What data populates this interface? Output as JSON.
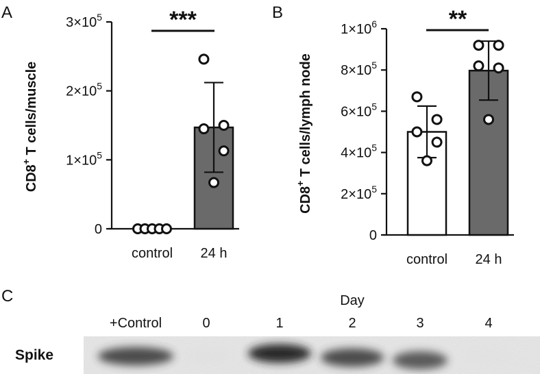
{
  "chart_data": [
    {
      "type": "bar",
      "panel": "A",
      "ylabel_main": "CD8",
      "ylabel_sup": "+",
      "ylabel_rest": " T cells/muscle",
      "categories": [
        "control",
        "24 h"
      ],
      "ylim": [
        0,
        300000
      ],
      "yticks": [
        {
          "value": 0,
          "base": "0",
          "exp": ""
        },
        {
          "value": 100000,
          "base": "1×10",
          "exp": "5"
        },
        {
          "value": 200000,
          "base": "2×10",
          "exp": "5"
        },
        {
          "value": 300000,
          "base": "3×10",
          "exp": "5"
        }
      ],
      "bars": [
        {
          "category": "control",
          "mean": 0,
          "sd": 0,
          "fill": "#ffffff",
          "points": [
            0,
            0,
            0,
            0,
            0
          ]
        },
        {
          "category": "24 h",
          "mean": 147000,
          "sd": 65000,
          "fill": "#6a6a6a",
          "points": [
            246000,
            150000,
            145000,
            113000,
            67000
          ]
        }
      ],
      "significance": "***"
    },
    {
      "type": "bar",
      "panel": "B",
      "ylabel_main": "CD8",
      "ylabel_sup": "+",
      "ylabel_rest": " T cells/lymph node",
      "categories": [
        "control",
        "24 h"
      ],
      "ylim": [
        0,
        1000000
      ],
      "yticks": [
        {
          "value": 0,
          "base": "0",
          "exp": ""
        },
        {
          "value": 200000,
          "base": "2×10",
          "exp": "5"
        },
        {
          "value": 400000,
          "base": "4×10",
          "exp": "5"
        },
        {
          "value": 600000,
          "base": "6×10",
          "exp": "5"
        },
        {
          "value": 800000,
          "base": "8×10",
          "exp": "5"
        },
        {
          "value": 1000000,
          "base": "1×10",
          "exp": "6"
        }
      ],
      "bars": [
        {
          "category": "control",
          "mean": 500000,
          "sd": 125000,
          "fill": "#ffffff",
          "points": [
            670000,
            560000,
            500000,
            450000,
            360000
          ]
        },
        {
          "category": "24 h",
          "mean": 797000,
          "sd": 143000,
          "fill": "#6a6a6a",
          "points": [
            920000,
            920000,
            820000,
            810000,
            560000
          ]
        }
      ],
      "significance": "**"
    }
  ],
  "blot": {
    "panel": "C",
    "header": "Day",
    "row_label": "Spike",
    "lanes": [
      {
        "label": "+Control",
        "intensity": 0.85
      },
      {
        "label": "0",
        "intensity": 0.05
      },
      {
        "label": "1",
        "intensity": 0.95
      },
      {
        "label": "2",
        "intensity": 0.85
      },
      {
        "label": "3",
        "intensity": 0.8
      },
      {
        "label": "4",
        "intensity": 0.04
      }
    ]
  }
}
